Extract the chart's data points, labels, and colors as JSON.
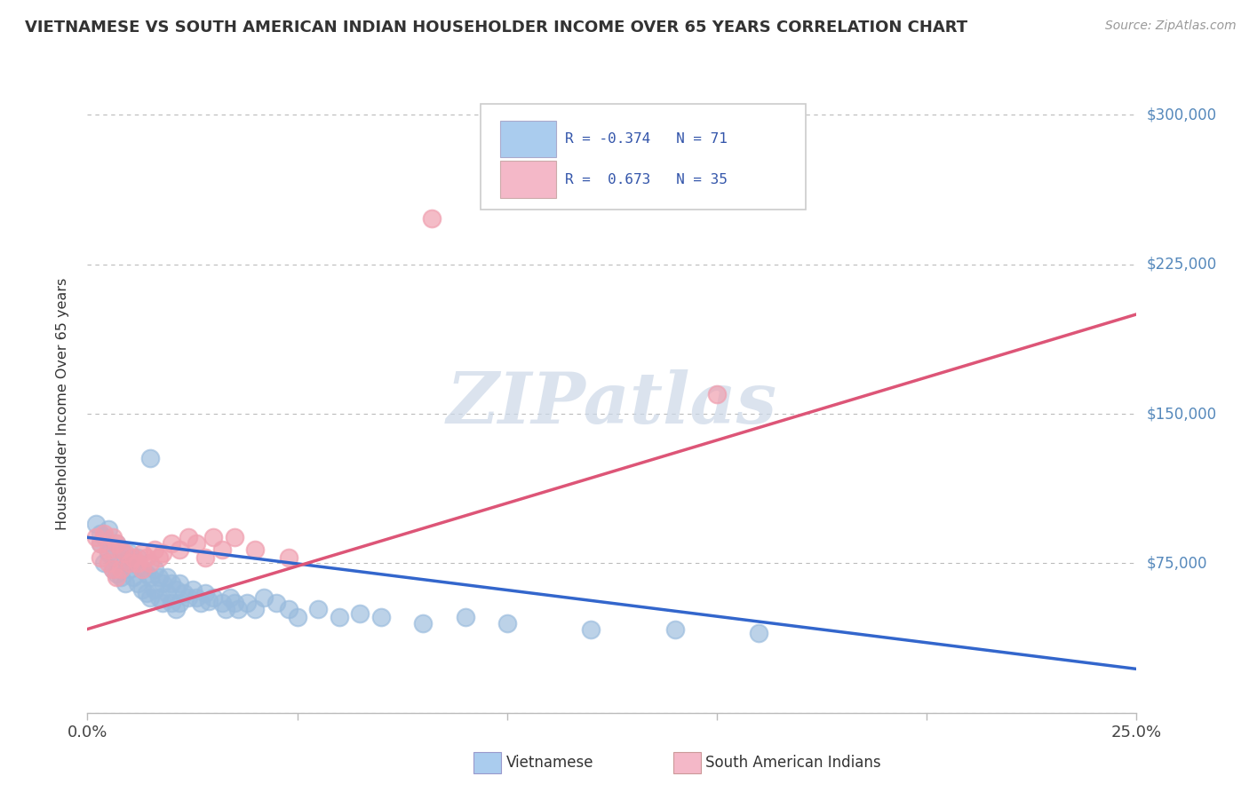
{
  "title": "VIETNAMESE VS SOUTH AMERICAN INDIAN HOUSEHOLDER INCOME OVER 65 YEARS CORRELATION CHART",
  "source": "Source: ZipAtlas.com",
  "ylabel": "Householder Income Over 65 years",
  "xlim": [
    0.0,
    0.25
  ],
  "ylim": [
    0,
    310000
  ],
  "yticks": [
    0,
    75000,
    150000,
    225000,
    300000
  ],
  "ytick_labels": [
    "",
    "$75,000",
    "$150,000",
    "$225,000",
    "$300,000"
  ],
  "xticks": [
    0.0,
    0.05,
    0.1,
    0.15,
    0.2,
    0.25
  ],
  "xtick_labels": [
    "0.0%",
    "",
    "",
    "",
    "",
    "25.0%"
  ],
  "background_color": "#ffffff",
  "grid_color": "#bbbbbb",
  "legend_R_blue": "R = -0.374",
  "legend_N_blue": "N = 71",
  "legend_R_pink": "R =  0.673",
  "legend_N_pink": "N = 35",
  "blue_scatter_color": "#99bbdd",
  "pink_scatter_color": "#f0a0b0",
  "blue_line_color": "#3366cc",
  "pink_line_color": "#dd5577",
  "right_label_color": "#5588bb",
  "title_color": "#333333",
  "source_color": "#999999",
  "legend_blue_fill": "#aaccee",
  "legend_pink_fill": "#f4b8c8",
  "watermark_color": "#ccd8e8",
  "vietnamese_points": [
    [
      0.002,
      95000
    ],
    [
      0.003,
      90000
    ],
    [
      0.003,
      85000
    ],
    [
      0.004,
      88000
    ],
    [
      0.004,
      75000
    ],
    [
      0.005,
      92000
    ],
    [
      0.005,
      80000
    ],
    [
      0.006,
      78000
    ],
    [
      0.006,
      72000
    ],
    [
      0.007,
      85000
    ],
    [
      0.007,
      70000
    ],
    [
      0.008,
      82000
    ],
    [
      0.008,
      68000
    ],
    [
      0.009,
      76000
    ],
    [
      0.009,
      65000
    ],
    [
      0.01,
      80000
    ],
    [
      0.01,
      72000
    ],
    [
      0.011,
      75000
    ],
    [
      0.011,
      68000
    ],
    [
      0.012,
      78000
    ],
    [
      0.012,
      65000
    ],
    [
      0.013,
      72000
    ],
    [
      0.013,
      62000
    ],
    [
      0.014,
      70000
    ],
    [
      0.014,
      60000
    ],
    [
      0.015,
      68000
    ],
    [
      0.015,
      58000
    ],
    [
      0.016,
      72000
    ],
    [
      0.016,
      62000
    ],
    [
      0.017,
      68000
    ],
    [
      0.017,
      58000
    ],
    [
      0.018,
      65000
    ],
    [
      0.018,
      55000
    ],
    [
      0.019,
      68000
    ],
    [
      0.019,
      60000
    ],
    [
      0.02,
      65000
    ],
    [
      0.02,
      55000
    ],
    [
      0.021,
      62000
    ],
    [
      0.021,
      52000
    ],
    [
      0.022,
      65000
    ],
    [
      0.022,
      55000
    ],
    [
      0.023,
      60000
    ],
    [
      0.024,
      58000
    ],
    [
      0.025,
      62000
    ],
    [
      0.026,
      58000
    ],
    [
      0.027,
      55000
    ],
    [
      0.028,
      60000
    ],
    [
      0.029,
      56000
    ],
    [
      0.03,
      58000
    ],
    [
      0.032,
      55000
    ],
    [
      0.033,
      52000
    ],
    [
      0.034,
      58000
    ],
    [
      0.035,
      55000
    ],
    [
      0.036,
      52000
    ],
    [
      0.038,
      55000
    ],
    [
      0.04,
      52000
    ],
    [
      0.042,
      58000
    ],
    [
      0.045,
      55000
    ],
    [
      0.048,
      52000
    ],
    [
      0.05,
      48000
    ],
    [
      0.055,
      52000
    ],
    [
      0.06,
      48000
    ],
    [
      0.065,
      50000
    ],
    [
      0.07,
      48000
    ],
    [
      0.08,
      45000
    ],
    [
      0.09,
      48000
    ],
    [
      0.1,
      45000
    ],
    [
      0.12,
      42000
    ],
    [
      0.14,
      42000
    ],
    [
      0.16,
      40000
    ],
    [
      0.015,
      128000
    ]
  ],
  "south_american_points": [
    [
      0.002,
      88000
    ],
    [
      0.003,
      85000
    ],
    [
      0.003,
      78000
    ],
    [
      0.004,
      90000
    ],
    [
      0.005,
      82000
    ],
    [
      0.005,
      75000
    ],
    [
      0.006,
      88000
    ],
    [
      0.006,
      72000
    ],
    [
      0.007,
      85000
    ],
    [
      0.007,
      68000
    ],
    [
      0.008,
      82000
    ],
    [
      0.008,
      72000
    ],
    [
      0.009,
      80000
    ],
    [
      0.01,
      75000
    ],
    [
      0.011,
      78000
    ],
    [
      0.012,
      75000
    ],
    [
      0.013,
      80000
    ],
    [
      0.013,
      72000
    ],
    [
      0.014,
      78000
    ],
    [
      0.015,
      75000
    ],
    [
      0.016,
      82000
    ],
    [
      0.017,
      78000
    ],
    [
      0.018,
      80000
    ],
    [
      0.02,
      85000
    ],
    [
      0.022,
      82000
    ],
    [
      0.024,
      88000
    ],
    [
      0.026,
      85000
    ],
    [
      0.028,
      78000
    ],
    [
      0.03,
      88000
    ],
    [
      0.032,
      82000
    ],
    [
      0.035,
      88000
    ],
    [
      0.04,
      82000
    ],
    [
      0.048,
      78000
    ],
    [
      0.082,
      248000
    ],
    [
      0.15,
      160000
    ]
  ],
  "vietnamese_line": {
    "x0": 0.0,
    "y0": 88000,
    "x1": 0.25,
    "y1": 22000
  },
  "south_american_line": {
    "x0": 0.0,
    "y0": 42000,
    "x1": 0.25,
    "y1": 200000
  }
}
